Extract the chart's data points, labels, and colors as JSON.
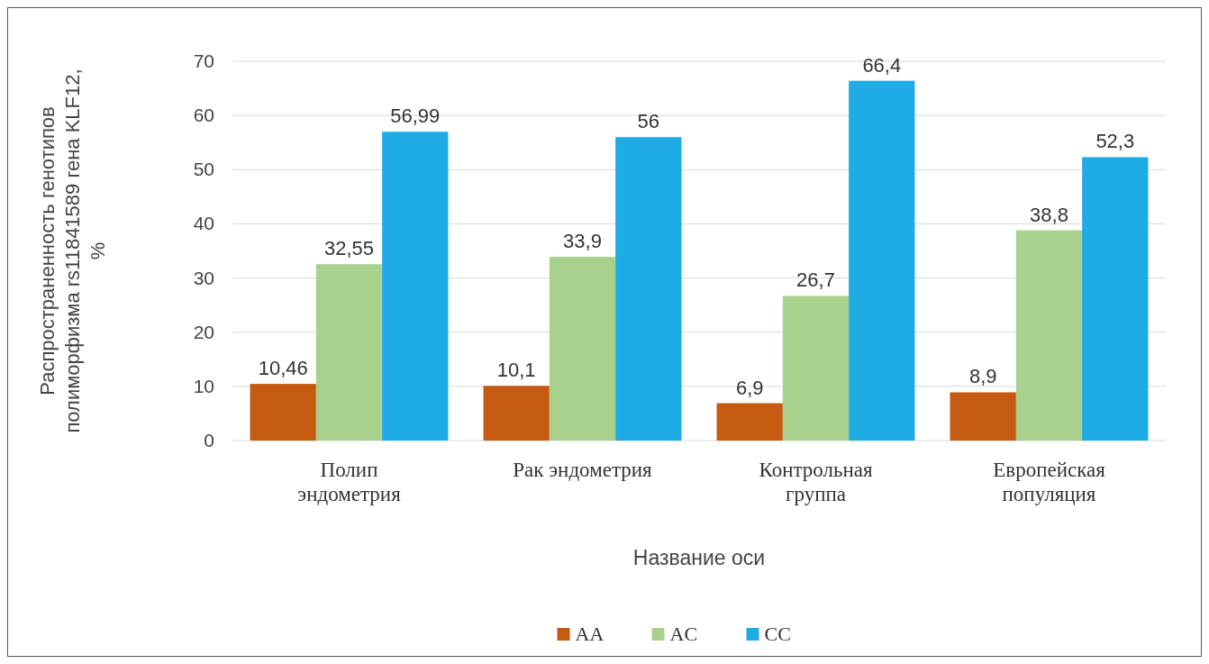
{
  "chart_data": {
    "type": "bar",
    "xlabel": "Название оси",
    "ylabel": "Распространенность генотипов полиморфизма rs11841589 гена KLF12, %",
    "categories": [
      "Полип эндометрия",
      "Рак эндометрия",
      "Контрольная группа",
      "Европейская популяция"
    ],
    "series": [
      {
        "name": "AA",
        "color": "#c55a11",
        "values": [
          10.46,
          10.1,
          6.9,
          8.9
        ],
        "value_labels": [
          "10,46",
          "10,1",
          "6,9",
          "8,9"
        ]
      },
      {
        "name": "AC",
        "color": "#a9d18e",
        "values": [
          32.55,
          33.9,
          26.7,
          38.8
        ],
        "value_labels": [
          "32,55",
          "33,9",
          "26,7",
          "38,8"
        ]
      },
      {
        "name": "CC",
        "color": "#1fabe3",
        "values": [
          56.99,
          56,
          66.4,
          52.3
        ],
        "value_labels": [
          "56,99",
          "56",
          "66,4",
          "52,3"
        ]
      }
    ],
    "ylim": [
      0,
      70
    ],
    "yticks": [
      0,
      10,
      20,
      30,
      40,
      50,
      60,
      70
    ],
    "grid": "y",
    "legend": "bottom"
  }
}
